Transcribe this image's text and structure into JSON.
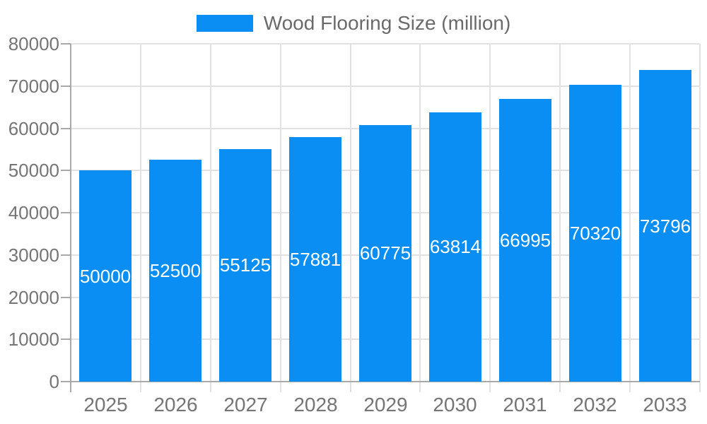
{
  "chart_data": {
    "type": "bar",
    "title": "",
    "series_name": "Wood Flooring Size (million)",
    "categories": [
      "2025",
      "2026",
      "2027",
      "2028",
      "2029",
      "2030",
      "2031",
      "2032",
      "2033"
    ],
    "values": [
      50000,
      52500,
      55125,
      57881,
      60775,
      63814,
      66995,
      70320,
      73796
    ],
    "xlabel": "",
    "ylabel": "",
    "ylim": [
      0,
      80000
    ],
    "ytick_step": 10000,
    "ytick_labels": [
      "0",
      "10000",
      "20000",
      "30000",
      "40000",
      "50000",
      "60000",
      "70000",
      "80000"
    ],
    "grid": true,
    "legend_position": "top-center",
    "bar_label_position": "inside-center",
    "colors": {
      "bar": "#0a8ef4",
      "bar_label": "#ffffff",
      "grid": "#e2e2e2",
      "axis": "#a9a9a9",
      "tick_label": "#757575",
      "legend_text": "#6a6a6a",
      "background": "#ffffff"
    }
  }
}
